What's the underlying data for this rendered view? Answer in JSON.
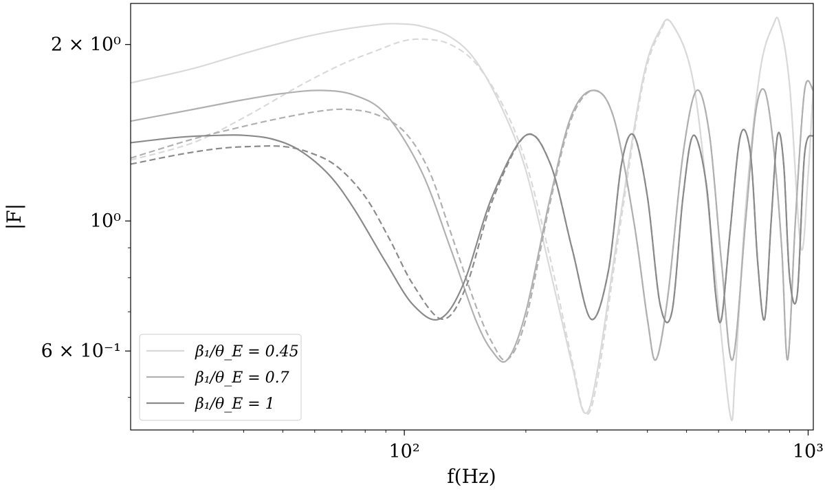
{
  "chart_data": {
    "type": "line",
    "xlabel": "f(Hz)",
    "ylabel": "|F|",
    "xscale": "log",
    "yscale": "log",
    "xlim": [
      21,
      1030
    ],
    "ylim": [
      0.44,
      2.35
    ],
    "x_ticks": [
      {
        "value": 100,
        "label": "10²"
      },
      {
        "value": 1000,
        "label": "10³"
      }
    ],
    "y_ticks": [
      {
        "value": 2.0,
        "label": "2 × 10⁰"
      },
      {
        "value": 1.0,
        "label": "10⁰"
      },
      {
        "value": 0.6,
        "label": "6 × 10⁻¹"
      }
    ],
    "grid": false,
    "legend": {
      "placement": "lower-left",
      "entries": [
        "β₁/θ_E = 0.45",
        "β₁/θ_E = 0.7",
        "β₁/θ_E = 1"
      ]
    },
    "series": [
      {
        "name": "β₁/θ_E = 0.45",
        "color": "#d9d9d9",
        "style": "solid",
        "x": [
          21,
          30,
          40,
          55,
          70,
          85,
          95,
          110,
          130,
          150,
          175,
          200,
          230,
          260,
          280,
          300,
          340,
          390,
          430,
          460,
          520,
          580,
          640,
          660,
          700,
          760,
          820,
          850,
          900,
          960,
          1000,
          1030
        ],
        "y": [
          1.72,
          1.82,
          1.93,
          2.05,
          2.12,
          2.16,
          2.17,
          2.15,
          2.06,
          1.88,
          1.55,
          1.22,
          0.82,
          0.57,
          0.47,
          0.55,
          0.98,
          1.75,
          2.12,
          2.17,
          1.72,
          0.9,
          0.47,
          0.55,
          1.05,
          1.8,
          2.16,
          2.17,
          1.7,
          0.9,
          1.2,
          1.7
        ]
      },
      {
        "name": "",
        "color": "#d9d9d9",
        "style": "dashed",
        "x": [
          21,
          30,
          40,
          55,
          70,
          85,
          100,
          115,
          130,
          150,
          175,
          200,
          230,
          260,
          280,
          300,
          340,
          390,
          430,
          460,
          520,
          580,
          640,
          660,
          700,
          760,
          820,
          850,
          900,
          960,
          1000,
          1030
        ],
        "y": [
          1.27,
          1.36,
          1.5,
          1.7,
          1.85,
          1.95,
          2.03,
          2.04,
          2.0,
          1.86,
          1.58,
          1.26,
          0.86,
          0.58,
          0.47,
          0.53,
          0.95,
          1.72,
          2.1,
          2.17,
          1.72,
          0.9,
          0.47,
          0.55,
          1.05,
          1.8,
          2.16,
          2.17,
          1.7,
          0.9,
          1.2,
          1.7
        ]
      },
      {
        "name": "β₁/θ_E = 0.7",
        "color": "#b0b0b0",
        "style": "solid",
        "x": [
          21,
          30,
          40,
          50,
          62,
          75,
          90,
          110,
          130,
          150,
          165,
          180,
          200,
          230,
          260,
          295,
          330,
          370,
          400,
          420,
          450,
          490,
          530,
          570,
          610,
          650,
          700,
          740,
          780,
          820,
          860,
          890,
          930,
          980,
          1030
        ],
        "y": [
          1.48,
          1.55,
          1.61,
          1.65,
          1.67,
          1.64,
          1.52,
          1.22,
          0.9,
          0.68,
          0.6,
          0.58,
          0.7,
          1.1,
          1.52,
          1.67,
          1.5,
          1.0,
          0.68,
          0.58,
          0.75,
          1.3,
          1.67,
          1.4,
          0.85,
          0.58,
          1.0,
          1.52,
          1.67,
          1.35,
          0.9,
          0.58,
          1.0,
          1.67,
          1.67
        ]
      },
      {
        "name": "",
        "color": "#b0b0b0",
        "style": "dashed",
        "x": [
          21,
          30,
          40,
          50,
          62,
          72,
          85,
          100,
          115,
          130,
          150,
          165,
          180,
          200,
          230,
          260,
          295,
          330,
          370,
          400,
          420,
          450,
          490,
          530,
          570,
          610,
          650,
          700,
          740,
          780,
          820,
          860,
          890,
          930,
          980,
          1030
        ],
        "y": [
          1.28,
          1.38,
          1.45,
          1.5,
          1.54,
          1.55,
          1.52,
          1.42,
          1.22,
          0.96,
          0.72,
          0.62,
          0.58,
          0.68,
          1.08,
          1.5,
          1.67,
          1.5,
          1.0,
          0.68,
          0.58,
          0.75,
          1.3,
          1.67,
          1.4,
          0.85,
          0.58,
          1.0,
          1.52,
          1.67,
          1.35,
          0.9,
          0.58,
          1.0,
          1.67,
          1.67
        ]
      },
      {
        "name": "β₁/θ_E = 1",
        "color": "#8a8a8a",
        "style": "solid",
        "x": [
          21,
          28,
          35,
          40,
          47,
          55,
          65,
          75,
          90,
          105,
          122,
          140,
          165,
          200,
          230,
          260,
          290,
          320,
          345,
          370,
          400,
          430,
          460,
          490,
          520,
          560,
          590,
          610,
          640,
          680,
          720,
          750,
          780,
          810,
          840,
          870,
          900,
          940,
          980,
          1030
        ],
        "y": [
          1.36,
          1.39,
          1.4,
          1.4,
          1.38,
          1.32,
          1.2,
          1.05,
          0.85,
          0.72,
          0.68,
          0.78,
          1.1,
          1.4,
          1.25,
          0.9,
          0.68,
          0.82,
          1.25,
          1.4,
          1.1,
          0.72,
          0.7,
          1.1,
          1.4,
          1.15,
          0.75,
          0.68,
          0.95,
          1.4,
          1.3,
          0.85,
          0.68,
          1.0,
          1.4,
          1.25,
          0.8,
          0.75,
          1.3,
          1.4
        ]
      },
      {
        "name": "",
        "color": "#8a8a8a",
        "style": "dashed",
        "x": [
          21,
          28,
          35,
          42,
          50,
          58,
          68,
          80,
          92,
          105,
          124,
          142,
          165,
          200,
          230,
          260,
          290,
          320,
          345,
          370,
          400,
          430,
          460,
          490,
          520,
          560,
          590,
          610,
          640,
          680,
          720,
          750,
          780,
          810,
          840,
          870,
          900,
          940,
          980,
          1030
        ],
        "y": [
          1.25,
          1.3,
          1.33,
          1.34,
          1.34,
          1.31,
          1.24,
          1.1,
          0.93,
          0.78,
          0.68,
          0.77,
          1.08,
          1.4,
          1.25,
          0.9,
          0.68,
          0.82,
          1.25,
          1.4,
          1.1,
          0.72,
          0.7,
          1.1,
          1.4,
          1.15,
          0.75,
          0.68,
          0.95,
          1.4,
          1.3,
          0.85,
          0.68,
          1.0,
          1.4,
          1.25,
          0.8,
          0.75,
          1.3,
          1.4
        ]
      }
    ]
  }
}
